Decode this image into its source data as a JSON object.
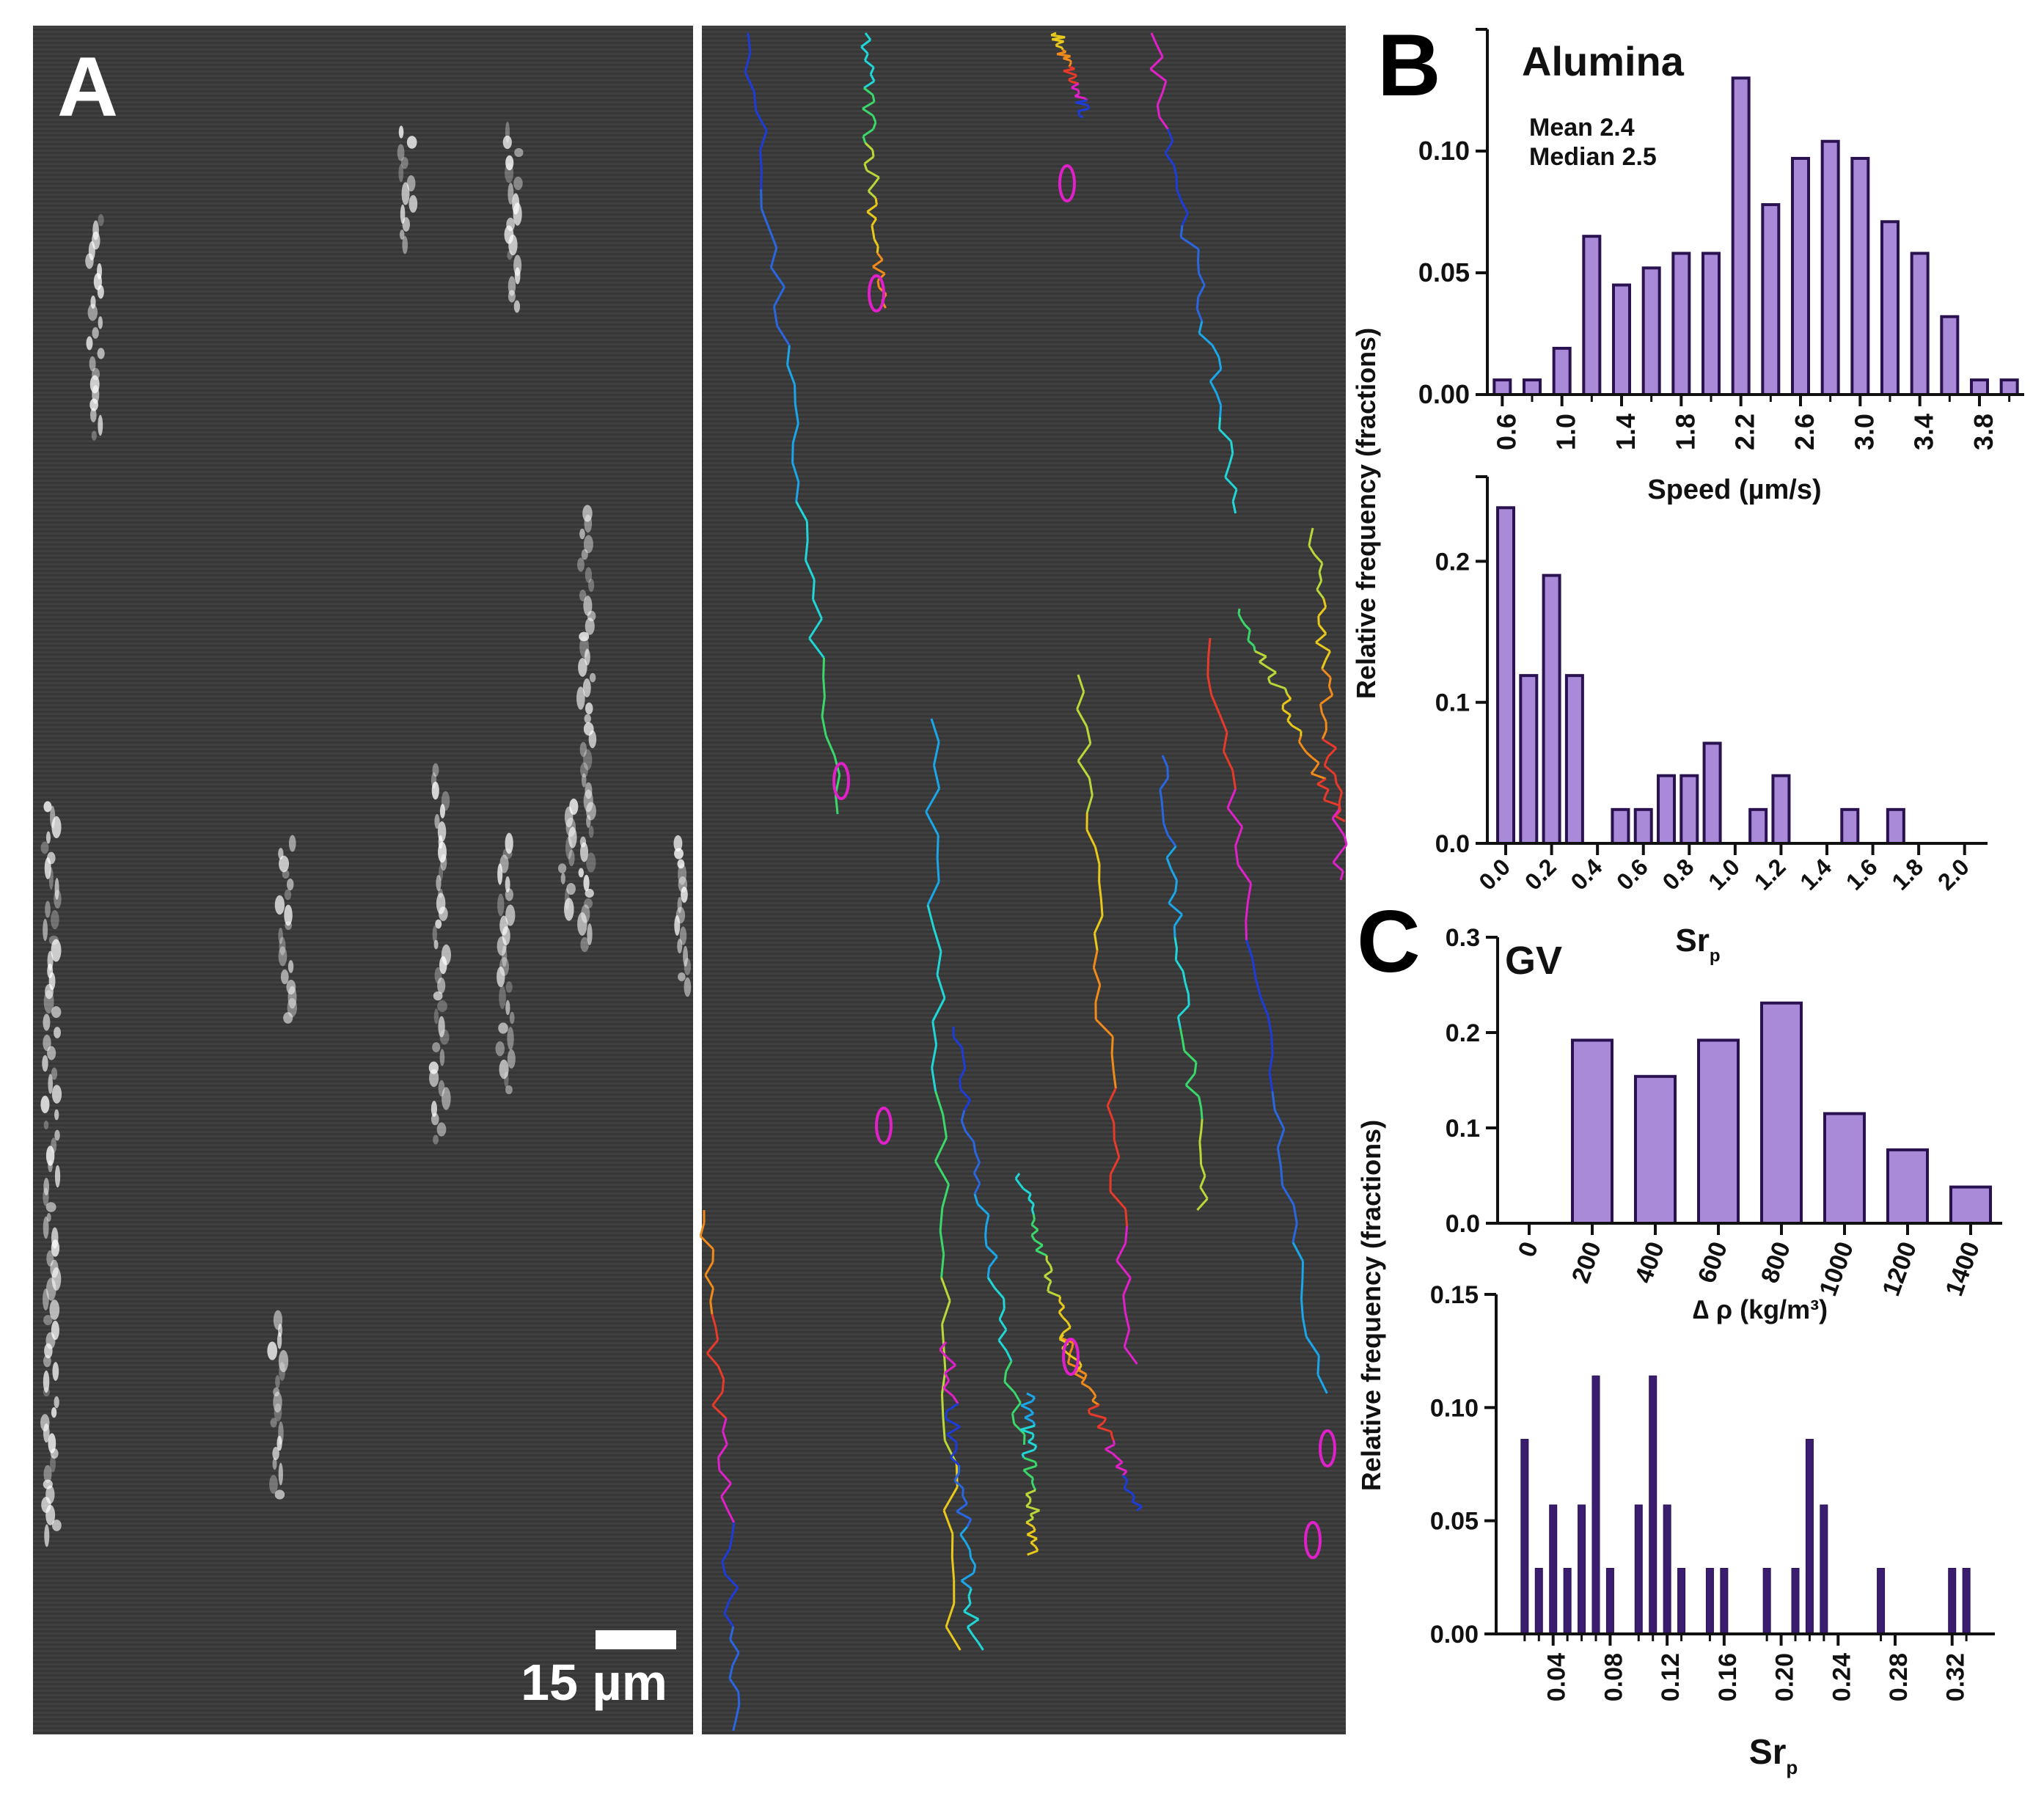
{
  "panels": {
    "a": {
      "letter": "A",
      "scale_bar_label": "15 µm"
    },
    "b": {
      "letter": "B",
      "title": "Alumina",
      "stats": [
        "Mean 2.4",
        "Median 2.5"
      ]
    },
    "c": {
      "letter": "C",
      "title": "GV"
    }
  },
  "shared_ylabel": "Relative frequency (fractions)",
  "colors": {
    "bar_fill_light": "#a88ad8",
    "bar_fill_dark": "#3a1d6e",
    "bar_stroke": "#2a1250",
    "image_background": "#3c3c3c",
    "track_colors": [
      "#1e3cd8",
      "#2a66e0",
      "#1aa6e8",
      "#20d6d6",
      "#3ad86a",
      "#b8d83a",
      "#e8c81a",
      "#f08a1a",
      "#e83a2a",
      "#e020c8"
    ]
  },
  "chart_data": [
    {
      "id": "b-speed",
      "type": "bar",
      "xlabel": "Speed (µm/s)",
      "ylabel": "Relative frequency (fractions)",
      "x": [
        0.6,
        0.8,
        1.0,
        1.2,
        1.4,
        1.6,
        1.8,
        2.0,
        2.2,
        2.4,
        2.6,
        2.8,
        3.0,
        3.2,
        3.4,
        3.6,
        3.8,
        4.0
      ],
      "values": [
        0.006,
        0.006,
        0.019,
        0.065,
        0.045,
        0.052,
        0.058,
        0.058,
        0.13,
        0.078,
        0.097,
        0.104,
        0.097,
        0.071,
        0.058,
        0.032,
        0.006,
        0.006
      ],
      "xlim": [
        0.5,
        4.1
      ],
      "ylim": [
        0,
        0.15
      ],
      "xticks": [
        "0.6",
        "1.0",
        "1.4",
        "1.8",
        "2.2",
        "2.6",
        "3.0",
        "3.4",
        "3.8"
      ],
      "xtick_values": [
        0.6,
        1.0,
        1.4,
        1.8,
        2.2,
        2.6,
        3.0,
        3.4,
        3.8
      ],
      "yticks": [
        "0.00",
        "0.05",
        "0.10"
      ],
      "ytick_values": [
        0,
        0.05,
        0.1
      ],
      "grid": false
    },
    {
      "id": "b-srp",
      "type": "bar",
      "xlabel": "Sr",
      "xlabel_subscript": "p",
      "x": [
        0.0,
        0.1,
        0.2,
        0.3,
        0.5,
        0.6,
        0.7,
        0.8,
        0.9,
        1.1,
        1.2,
        1.5,
        1.7
      ],
      "values": [
        0.238,
        0.119,
        0.19,
        0.119,
        0.024,
        0.024,
        0.048,
        0.048,
        0.071,
        0.024,
        0.048,
        0.024,
        0.024
      ],
      "xlim": [
        -0.08,
        2.1
      ],
      "ylim": [
        0,
        0.26
      ],
      "xticks": [
        "0.0",
        "0.2",
        "0.4",
        "0.6",
        "0.8",
        "1.0",
        "1.2",
        "1.4",
        "1.6",
        "1.8",
        "2.0"
      ],
      "xtick_values": [
        0.0,
        0.2,
        0.4,
        0.6,
        0.8,
        1.0,
        1.2,
        1.4,
        1.6,
        1.8,
        2.0
      ],
      "yticks": [
        "0.0",
        "0.1",
        "0.2"
      ],
      "ytick_values": [
        0,
        0.1,
        0.2
      ],
      "grid": false
    },
    {
      "id": "c-density",
      "type": "bar",
      "xlabel": "∆ ρ  (kg/m³)",
      "categories": [
        "0",
        "200",
        "400",
        "600",
        "800",
        "1000",
        "1200",
        "1400"
      ],
      "values": [
        0,
        0.192,
        0.154,
        0.192,
        0.231,
        0.115,
        0.077,
        0.038
      ],
      "ylim": [
        0,
        0.3
      ],
      "yticks": [
        "0.0",
        "0.1",
        "0.2",
        "0.3"
      ],
      "ytick_values": [
        0,
        0.1,
        0.2,
        0.3
      ],
      "grid": false
    },
    {
      "id": "c-srp",
      "type": "bar",
      "xlabel": "Sr",
      "xlabel_subscript": "p",
      "x": [
        0.02,
        0.03,
        0.04,
        0.05,
        0.06,
        0.07,
        0.08,
        0.1,
        0.11,
        0.12,
        0.13,
        0.15,
        0.16,
        0.19,
        0.21,
        0.22,
        0.23,
        0.27,
        0.32,
        0.33
      ],
      "values": [
        0.086,
        0.029,
        0.057,
        0.029,
        0.057,
        0.114,
        0.029,
        0.057,
        0.114,
        0.057,
        0.029,
        0.029,
        0.029,
        0.029,
        0.029,
        0.086,
        0.057,
        0.029,
        0.029,
        0.029
      ],
      "xlim": [
        0.0,
        0.35
      ],
      "ylim": [
        0,
        0.15
      ],
      "xticks": [
        "0.04",
        "0.08",
        "0.12",
        "0.16",
        "0.20",
        "0.24",
        "0.28",
        "0.32"
      ],
      "xtick_values": [
        0.04,
        0.08,
        0.12,
        0.16,
        0.2,
        0.24,
        0.28,
        0.32
      ],
      "yticks": [
        "0.00",
        "0.05",
        "0.10",
        "0.15"
      ],
      "ytick_values": [
        0,
        0.05,
        0.1,
        0.15
      ],
      "grid": false
    }
  ]
}
